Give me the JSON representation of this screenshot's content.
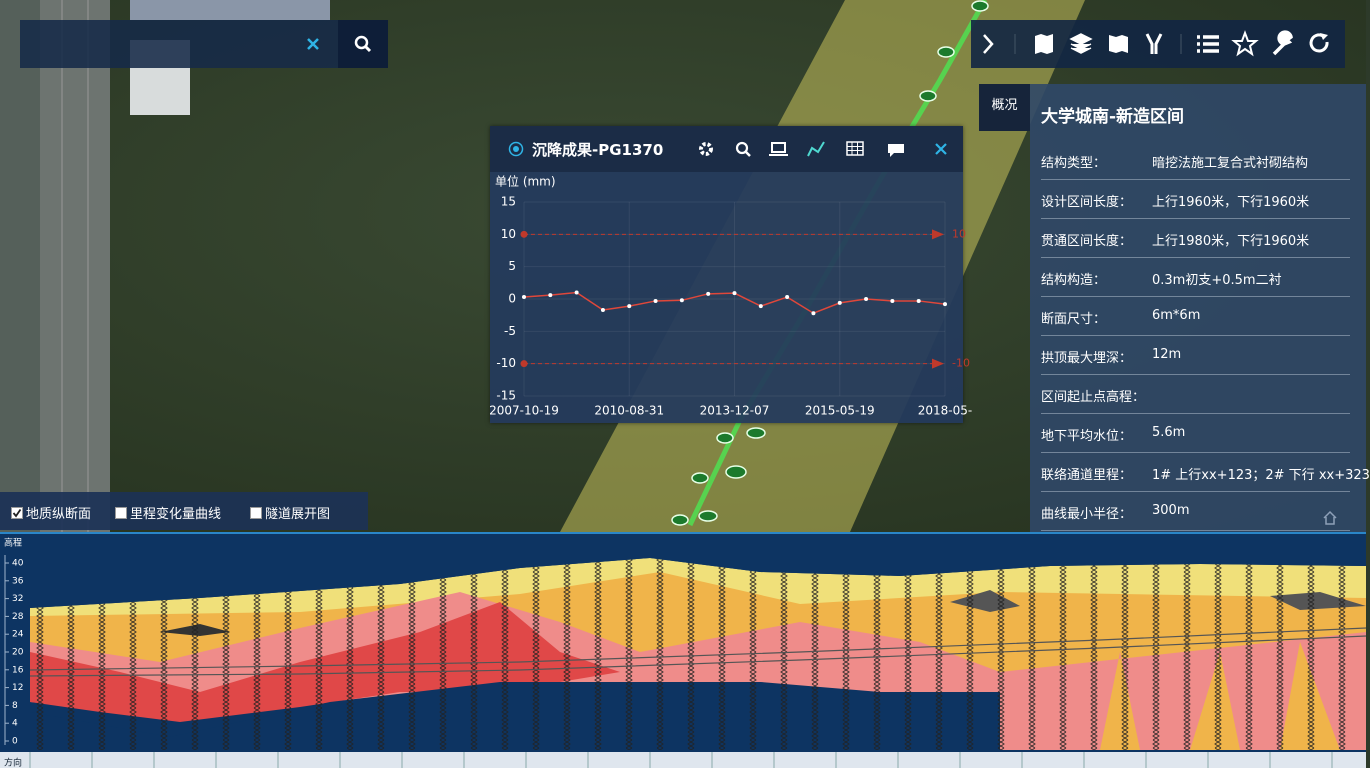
{
  "popup": {
    "title": "沉降成果-PG1370",
    "chart": {
      "type": "line",
      "y_label": "单位 (mm)",
      "categories": [
        "2007-10-19",
        null,
        null,
        null,
        "2010-08-31",
        null,
        null,
        null,
        "2013-12-07",
        null,
        null,
        null,
        "2015-05-19",
        null,
        null,
        null,
        "2018-05-"
      ],
      "values": [
        0.3,
        0.6,
        1.0,
        -1.7,
        -1.1,
        -0.3,
        -0.2,
        0.8,
        0.9,
        -1.1,
        0.3,
        -2.2,
        -0.6,
        0,
        -0.3,
        -0.3,
        -0.8
      ],
      "color": "#e0473a",
      "ylim": [
        -15,
        15
      ],
      "yticks": [
        15,
        10,
        5,
        0,
        -5,
        -10,
        -15
      ],
      "mark_lines": [
        {
          "value": 10,
          "label": "10"
        },
        {
          "value": -10,
          "label": "-10"
        }
      ],
      "mark_line_color": "#c0392b",
      "grid": true
    }
  },
  "info_panel": {
    "tab": "概况",
    "title": "大学城南-新造区间",
    "rows": [
      {
        "label": "结构类型：",
        "value": "暗挖法施工复合式衬砌结构"
      },
      {
        "label": "设计区间长度：",
        "value": "上行1960米，下行1960米"
      },
      {
        "label": "贯通区间长度：",
        "value": "上行1980米，下行1960米"
      },
      {
        "label": "结构构造：",
        "value": "0.3m初支+0.5m二衬"
      },
      {
        "label": "断面尺寸：",
        "value": "6m*6m"
      },
      {
        "label": "拱顶最大埋深：",
        "value": "12m"
      },
      {
        "label": "区间起止点高程："
      },
      {
        "label": "地下平均水位：",
        "value": "5.6m"
      },
      {
        "label": "联络通道里程：",
        "value": "1# 上行xx+123；2# 下行 xx+323"
      },
      {
        "label": "曲线最小半径：",
        "value": "300m"
      }
    ]
  },
  "layer_toggles": [
    {
      "label": "地质纵断面",
      "checked": true
    },
    {
      "label": "里程变化量曲线",
      "checked": false
    },
    {
      "label": "隧道展开图",
      "checked": false
    }
  ],
  "profile": {
    "axis_label": "高程",
    "yticks": [
      40,
      36,
      32,
      28,
      24,
      20,
      16,
      12,
      8,
      4,
      0
    ],
    "direction_label": "方向"
  }
}
